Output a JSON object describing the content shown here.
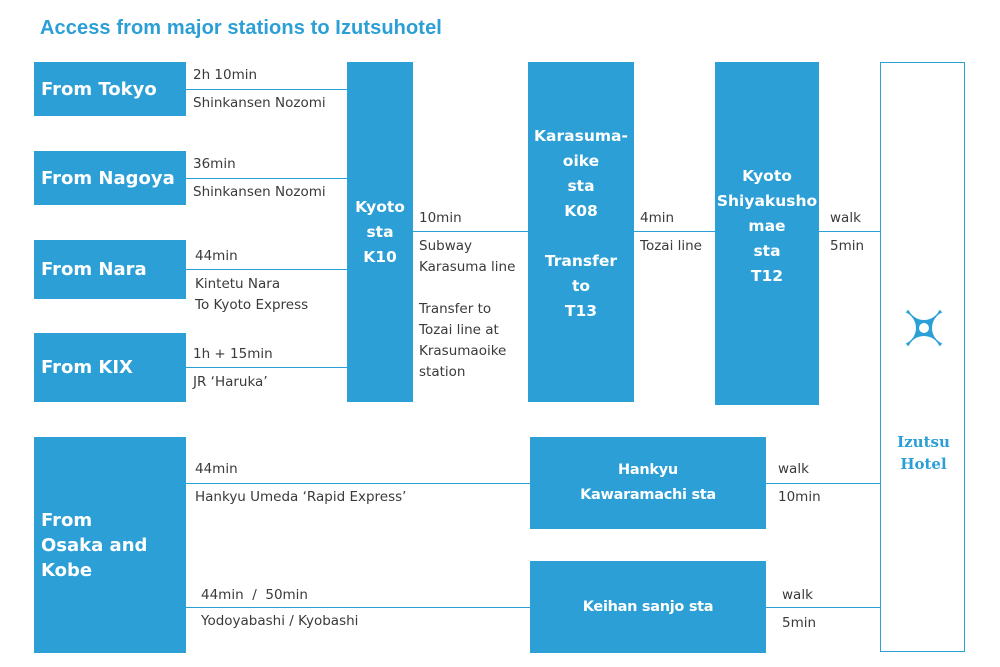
{
  "title": "Access from major stations to Izutsuhotel",
  "colors": {
    "accent": "#2b9fd6",
    "text": "#3a3a3a",
    "background": "#ffffff"
  },
  "origins": {
    "tokyo": "From Tokyo",
    "nagoya": "From Nagoya",
    "nara": "From Nara",
    "kix": "From KIX",
    "osaka_kobe": "From\nOsaka and\nKobe"
  },
  "stations": {
    "kyoto": "Kyoto\nsta\nK10",
    "karasuma": "Karasuma-\noike\nsta\nK08\n\nTransfer\nto\nT13",
    "shiyakusho": "Kyoto\nShiyakusho\nmae\nsta\nT12",
    "hankyu": "Hankyu\nKawaramachi sta",
    "keihan": "Keihan sanjo sta"
  },
  "routes": {
    "tokyo_time": "2h 10min",
    "tokyo_train": "Shinkansen Nozomi",
    "nagoya_time": "36min",
    "nagoya_train": "Shinkansen Nozomi",
    "nara_time": "44min",
    "nara_train": "Kintetu Nara\nTo Kyoto Express",
    "kix_time": "1h + 15min",
    "kix_train": "JR ‘Haruka’",
    "kyoto_karasuma_time": "10min",
    "kyoto_karasuma_train": "Subway\nKarasuma line\n\nTransfer to\nTozai line at\nKrasumaoike\nstation",
    "karasuma_shiyakusho_time": "4min",
    "karasuma_shiyakusho_train": "Tozai line",
    "shiyakusho_walk": "walk",
    "shiyakusho_walk_time": "5min",
    "hankyu_time": "44min",
    "hankyu_train": "Hankyu Umeda ‘Rapid Express’",
    "hankyu_walk": "walk",
    "hankyu_walk_time": "10min",
    "keihan_time": "44min  /  50min",
    "keihan_train": "Yodoyabashi / Kyobashi",
    "keihan_walk": "walk",
    "keihan_walk_time": "5min"
  },
  "hotel": {
    "name": "Izutsu\nHotel",
    "logo_icon": "izutsu-flower-logo-icon"
  }
}
